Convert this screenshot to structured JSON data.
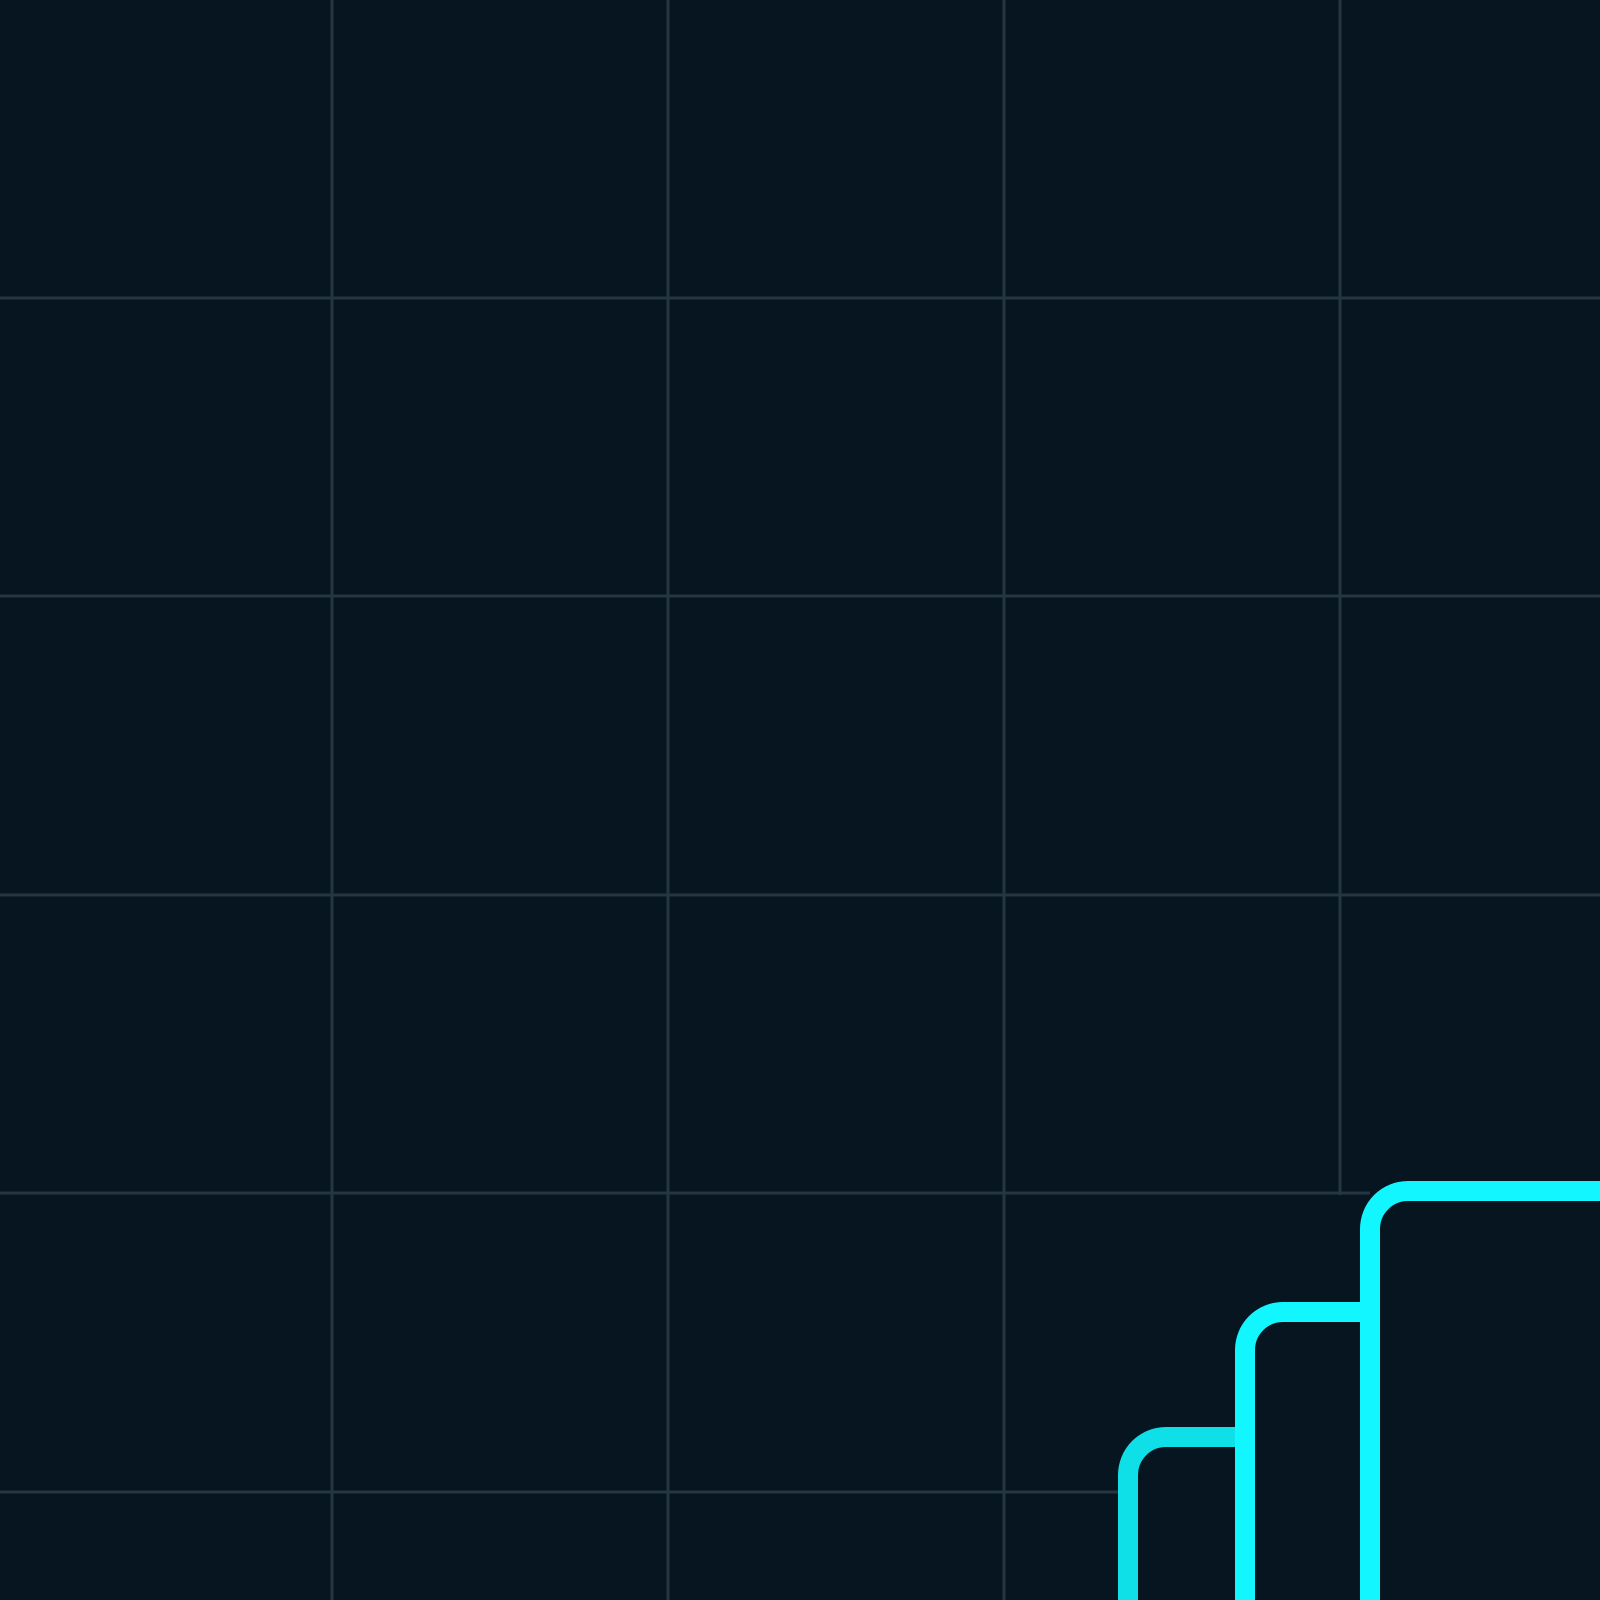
{
  "colors": {
    "background": "#061520",
    "grid_line": "#253640",
    "accent_cyan": "#12f7ff",
    "accent_cyan_dim": "#0fe0e8"
  },
  "graphic": {
    "grid": true,
    "bar_outline_count": 3
  }
}
